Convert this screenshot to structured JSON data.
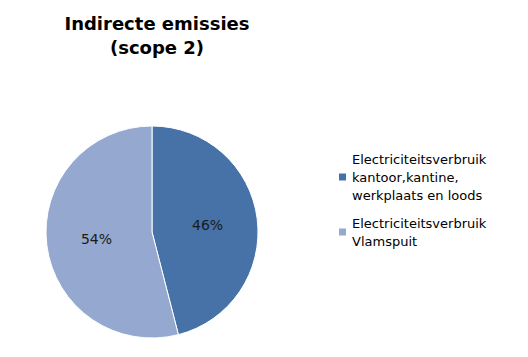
{
  "chart_data": {
    "type": "pie",
    "title": "Indirecte emissies\n(scope 2)",
    "categories": [
      "Electriciteitsverbruik kantoor,kantine, werkplaats en loods",
      "Electriciteitsverbruik Vlamspuit"
    ],
    "values": [
      46,
      54
    ],
    "value_labels": [
      "46%",
      "54%"
    ],
    "colors": [
      "#4672a8",
      "#95a8cf"
    ],
    "data_labels": true,
    "legend": "right"
  }
}
